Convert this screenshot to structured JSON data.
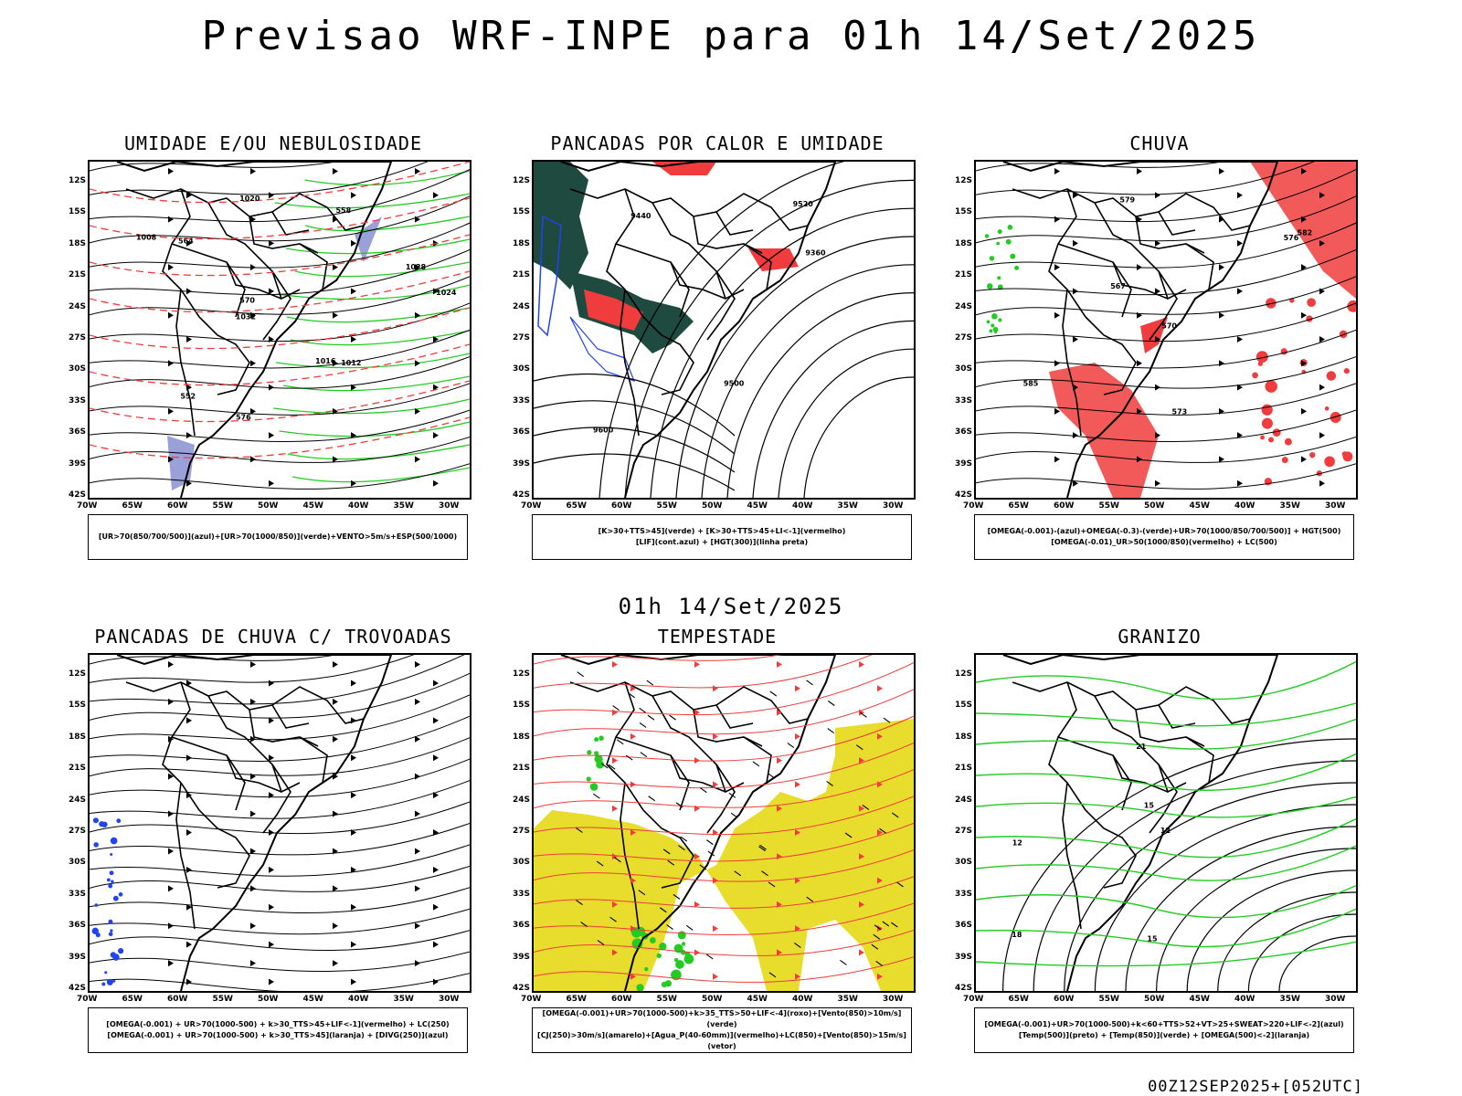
{
  "header": {
    "title": "Previsao WRF-INPE  para 01h 14/Set/2025"
  },
  "middle": {
    "subtitle": "01h 14/Set/2025"
  },
  "footer": {
    "stamp": "00Z12SEP2025+[052UTC]"
  },
  "axes": {
    "lat_labels": [
      "12S",
      "15S",
      "18S",
      "21S",
      "24S",
      "27S",
      "30S",
      "33S",
      "36S",
      "39S",
      "42S"
    ],
    "lon_labels": [
      "70W",
      "65W",
      "60W",
      "55W",
      "50W",
      "45W",
      "40W",
      "35W",
      "30W"
    ]
  },
  "colors": {
    "black": "#000000",
    "red": "#f03c3c",
    "green": "#22cc22",
    "blue": "#2244ee",
    "yellow": "#e8dc2c",
    "darkgreen": "#1e4a40",
    "lilac": "#9aa0d8"
  },
  "panels": [
    {
      "title": "UMIDADE E/OU NEBULOSIDADE",
      "legend": [
        "[UR>70(850/700/500)](azul)+[UR>70(1000/850)](verde)+VENTO>5m/s+ESP(500/1000)"
      ],
      "contour_labels": [
        "1012",
        "1008",
        "1020",
        "1024",
        "1016",
        "1028",
        "1032",
        "576",
        "570",
        "564",
        "558",
        "552"
      ]
    },
    {
      "title": "PANCADAS POR CALOR E UMIDADE",
      "legend": [
        "[K>30+TTS>45](verde) + [K>30+TTS>45+LI<-1](vermelho)",
        "[LIF](cont.azul) + [HGT(300)](linha preta)"
      ],
      "contour_labels": [
        "9600",
        "9520",
        "9440",
        "9360",
        "9500"
      ]
    },
    {
      "title": "CHUVA",
      "legend": [
        "[OMEGA(-0.001)-(azul)+OMEGA(-0.3)-(verde)+UR>70(1000/850/700/500)] + HGT(500)",
        "[OMEGA(-0.01)_UR>50(1000/850)(vermelho) + LC(500)"
      ],
      "contour_labels": [
        "582",
        "576",
        "573",
        "570",
        "567",
        "579",
        "585"
      ]
    },
    {
      "title": "PANCADAS DE CHUVA C/ TROVOADAS",
      "legend": [
        "[OMEGA(-0.001) + UR>70(1000-500) + k>30_TTS>45+LIF<-1](vermelho) + LC(250)",
        "[OMEGA(-0.001) + UR>70(1000-500) + k>30_TTS>45](laranja) + [DIVG(250)](azul)"
      ],
      "contour_labels": []
    },
    {
      "title": "TEMPESTADE",
      "legend": [
        "[OMEGA(-0.001)+UR>70(1000-500)+k>35_TTS>50+LIF<-4](roxo)+[Vento(850)>10m/s](verde)",
        "[CJ(250)>30m/s](amarelo)+[Agua_P(40-60mm)](vermelho)+LC(850)+[Vento(850)>15m/s](vetor)"
      ],
      "contour_labels": []
    },
    {
      "title": "GRANIZO",
      "legend": [
        "[OMEGA(-0.001)+UR>70(1000-500)+k<60+TTS>52+VT>25+SWEAT>220+LIF<-2](azul)",
        "[Temp(500)](preto) + [Temp(850)](verde) + [OMEGA(500)<-2](laranja)"
      ],
      "contour_labels": [
        "12",
        "15",
        "18",
        "21",
        "12",
        "15"
      ]
    }
  ]
}
